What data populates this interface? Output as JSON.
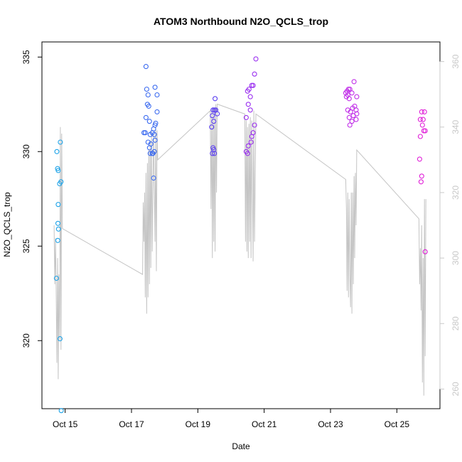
{
  "chart_data": {
    "type": "scatter",
    "title": "ATOM3 Northbound N2O_QCLS_trop",
    "xlabel": "Date",
    "ylabel": "N2O_QCLS_trop",
    "x_axis": {
      "type": "date",
      "range": [
        "2017-10-14 07:12",
        "2017-10-26 07:12"
      ],
      "ticks": [
        {
          "date": "2017-10-15",
          "label": "Oct 15"
        },
        {
          "date": "2017-10-17",
          "label": "Oct 17"
        },
        {
          "date": "2017-10-19",
          "label": "Oct 19"
        },
        {
          "date": "2017-10-21",
          "label": "Oct 21"
        },
        {
          "date": "2017-10-23",
          "label": "Oct 23"
        },
        {
          "date": "2017-10-25",
          "label": "Oct 25"
        }
      ]
    },
    "y_axis_left": {
      "ylim": [
        316.4,
        335.8
      ],
      "ticks": [
        320,
        325,
        330,
        335
      ],
      "tick_labels": [
        "320",
        "325",
        "330",
        "335"
      ]
    },
    "y_axis_right": {
      "ylim": [
        254,
        366
      ],
      "ticks": [
        260,
        280,
        300,
        320,
        340,
        360
      ],
      "tick_labels": [
        "260",
        "280",
        "300",
        "320",
        "340",
        "360"
      ],
      "color": "#c8c8c8"
    },
    "grid": false,
    "legend": "none",
    "series": [
      {
        "type": "scatter",
        "axis": "left",
        "color": "#1ea3e8",
        "points": [
          {
            "x": "2017-10-14 18:00",
            "y": 330.0
          },
          {
            "x": "2017-10-14 18:30",
            "y": 329.1
          },
          {
            "x": "2017-10-14 19:00",
            "y": 329.0
          },
          {
            "x": "2017-10-14 19:00",
            "y": 327.2
          },
          {
            "x": "2017-10-14 18:45",
            "y": 326.2
          },
          {
            "x": "2017-10-14 19:10",
            "y": 325.9
          },
          {
            "x": "2017-10-14 18:40",
            "y": 325.3
          },
          {
            "x": "2017-10-14 17:40",
            "y": 323.3
          },
          {
            "x": "2017-10-14 20:30",
            "y": 330.5
          },
          {
            "x": "2017-10-14 20:00",
            "y": 328.3
          },
          {
            "x": "2017-10-14 21:00",
            "y": 328.4
          },
          {
            "x": "2017-10-14 20:15",
            "y": 320.1
          },
          {
            "x": "2017-10-14 21:10",
            "y": 316.3
          }
        ]
      },
      {
        "type": "scatter",
        "axis": "left",
        "color": "#3c6bf0",
        "points": [
          {
            "x": "2017-10-17 10:30",
            "y": 334.5
          },
          {
            "x": "2017-10-17 11:00",
            "y": 333.3
          },
          {
            "x": "2017-10-17 12:00",
            "y": 333.0
          },
          {
            "x": "2017-10-17 17:00",
            "y": 333.4
          },
          {
            "x": "2017-10-17 18:30",
            "y": 333.0
          },
          {
            "x": "2017-10-17 11:30",
            "y": 332.5
          },
          {
            "x": "2017-10-17 12:30",
            "y": 332.4
          },
          {
            "x": "2017-10-17 18:30",
            "y": 332.1
          },
          {
            "x": "2017-10-17 10:30",
            "y": 331.8
          },
          {
            "x": "2017-10-17 13:00",
            "y": 331.6
          },
          {
            "x": "2017-10-17 17:30",
            "y": 331.5
          },
          {
            "x": "2017-10-17 17:00",
            "y": 331.4
          },
          {
            "x": "2017-10-17 16:00",
            "y": 331.2
          },
          {
            "x": "2017-10-17 09:00",
            "y": 331.0
          },
          {
            "x": "2017-10-17 10:00",
            "y": 331.0
          },
          {
            "x": "2017-10-17 13:30",
            "y": 330.9
          },
          {
            "x": "2017-10-17 15:00",
            "y": 331.0
          },
          {
            "x": "2017-10-17 16:30",
            "y": 330.9
          },
          {
            "x": "2017-10-17 17:00",
            "y": 330.6
          },
          {
            "x": "2017-10-17 12:00",
            "y": 330.5
          },
          {
            "x": "2017-10-17 13:00",
            "y": 330.2
          },
          {
            "x": "2017-10-17 14:00",
            "y": 330.4
          },
          {
            "x": "2017-10-17 13:30",
            "y": 329.9
          },
          {
            "x": "2017-10-17 15:00",
            "y": 329.9
          },
          {
            "x": "2017-10-17 15:30",
            "y": 329.9
          },
          {
            "x": "2017-10-17 16:30",
            "y": 330.0
          },
          {
            "x": "2017-10-17 16:00",
            "y": 328.6
          }
        ]
      },
      {
        "type": "scatter",
        "axis": "left",
        "color": "#5b3ef0",
        "points": [
          {
            "x": "2017-10-19 12:30",
            "y": 332.8
          },
          {
            "x": "2017-10-19 11:00",
            "y": 332.2
          },
          {
            "x": "2017-10-19 12:00",
            "y": 332.2
          },
          {
            "x": "2017-10-19 13:00",
            "y": 332.2
          },
          {
            "x": "2017-10-19 14:00",
            "y": 332.0
          },
          {
            "x": "2017-10-19 10:30",
            "y": 331.9
          },
          {
            "x": "2017-10-19 11:30",
            "y": 331.6
          },
          {
            "x": "2017-10-19 10:00",
            "y": 331.3
          },
          {
            "x": "2017-10-19 11:00",
            "y": 330.2
          },
          {
            "x": "2017-10-19 11:30",
            "y": 330.1
          },
          {
            "x": "2017-10-19 10:30",
            "y": 329.9
          },
          {
            "x": "2017-10-19 12:00",
            "y": 329.9
          }
        ]
      },
      {
        "type": "scatter",
        "axis": "left",
        "color": "#9a2ff0",
        "points": [
          {
            "x": "2017-10-20 18:00",
            "y": 334.9
          },
          {
            "x": "2017-10-20 17:00",
            "y": 334.1
          },
          {
            "x": "2017-10-20 15:00",
            "y": 333.5
          },
          {
            "x": "2017-10-20 16:00",
            "y": 333.5
          },
          {
            "x": "2017-10-20 12:00",
            "y": 333.2
          },
          {
            "x": "2017-10-20 13:00",
            "y": 333.3
          },
          {
            "x": "2017-10-20 14:00",
            "y": 332.9
          },
          {
            "x": "2017-10-20 12:30",
            "y": 332.5
          },
          {
            "x": "2017-10-20 14:00",
            "y": 332.2
          },
          {
            "x": "2017-10-20 11:00",
            "y": 331.8
          },
          {
            "x": "2017-10-20 17:00",
            "y": 331.4
          },
          {
            "x": "2017-10-20 16:00",
            "y": 331.0
          },
          {
            "x": "2017-10-20 15:00",
            "y": 330.8
          },
          {
            "x": "2017-10-20 14:30",
            "y": 330.5
          },
          {
            "x": "2017-10-20 12:30",
            "y": 330.3
          },
          {
            "x": "2017-10-20 11:00",
            "y": 330.0
          },
          {
            "x": "2017-10-20 12:00",
            "y": 329.9
          }
        ]
      },
      {
        "type": "scatter",
        "axis": "left",
        "color": "#c02ee8",
        "points": [
          {
            "x": "2017-10-23 17:00",
            "y": 333.7
          },
          {
            "x": "2017-10-23 12:00",
            "y": 333.2
          },
          {
            "x": "2017-10-23 13:00",
            "y": 333.3
          },
          {
            "x": "2017-10-23 14:00",
            "y": 333.3
          },
          {
            "x": "2017-10-23 11:00",
            "y": 333.1
          },
          {
            "x": "2017-10-23 12:30",
            "y": 333.0
          },
          {
            "x": "2017-10-23 15:30",
            "y": 333.1
          },
          {
            "x": "2017-10-23 11:30",
            "y": 332.9
          },
          {
            "x": "2017-10-23 13:30",
            "y": 332.8
          },
          {
            "x": "2017-10-23 19:00",
            "y": 332.9
          },
          {
            "x": "2017-10-23 17:30",
            "y": 332.4
          },
          {
            "x": "2017-10-23 16:00",
            "y": 332.3
          },
          {
            "x": "2017-10-23 18:30",
            "y": 332.2
          },
          {
            "x": "2017-10-23 12:30",
            "y": 332.2
          },
          {
            "x": "2017-10-23 14:30",
            "y": 332.1
          },
          {
            "x": "2017-10-23 16:30",
            "y": 331.9
          },
          {
            "x": "2017-10-23 19:00",
            "y": 332.0
          },
          {
            "x": "2017-10-23 13:30",
            "y": 331.8
          },
          {
            "x": "2017-10-23 18:30",
            "y": 331.7
          },
          {
            "x": "2017-10-23 15:30",
            "y": 331.6
          },
          {
            "x": "2017-10-23 14:00",
            "y": 331.4
          }
        ]
      },
      {
        "type": "scatter",
        "axis": "left",
        "color": "#e01ed8",
        "points": [
          {
            "x": "2017-10-25 18:00",
            "y": 332.1
          },
          {
            "x": "2017-10-25 20:00",
            "y": 332.1
          },
          {
            "x": "2017-10-25 17:00",
            "y": 331.7
          },
          {
            "x": "2017-10-25 19:00",
            "y": 331.7
          },
          {
            "x": "2017-10-25 18:30",
            "y": 331.4
          },
          {
            "x": "2017-10-25 19:30",
            "y": 331.1
          },
          {
            "x": "2017-10-25 20:30",
            "y": 331.1
          },
          {
            "x": "2017-10-25 17:00",
            "y": 330.8
          },
          {
            "x": "2017-10-25 16:30",
            "y": 329.6
          },
          {
            "x": "2017-10-25 18:00",
            "y": 328.7
          },
          {
            "x": "2017-10-25 17:30",
            "y": 328.4
          },
          {
            "x": "2017-10-25 20:30",
            "y": 324.7
          }
        ]
      },
      {
        "type": "line",
        "axis": "right",
        "color": "#c4c4c4",
        "points": [
          {
            "x": "2017-10-14 16:00",
            "y": 310
          },
          {
            "x": "2017-10-14 16:30",
            "y": 292
          },
          {
            "x": "2017-10-14 17:00",
            "y": 306
          },
          {
            "x": "2017-10-14 17:30",
            "y": 290
          },
          {
            "x": "2017-10-14 18:00",
            "y": 268
          },
          {
            "x": "2017-10-14 18:30",
            "y": 300
          },
          {
            "x": "2017-10-14 19:00",
            "y": 263
          },
          {
            "x": "2017-10-14 19:30",
            "y": 295
          },
          {
            "x": "2017-10-14 20:00",
            "y": 275
          },
          {
            "x": "2017-10-14 20:30",
            "y": 340
          },
          {
            "x": "2017-10-14 21:00",
            "y": 272
          },
          {
            "x": "2017-10-14 21:30",
            "y": 338
          },
          {
            "x": "2017-10-14 22:00",
            "y": 309
          },
          {
            "x": "2017-10-17 08:00",
            "y": 295
          },
          {
            "x": "2017-10-17 08:30",
            "y": 317
          },
          {
            "x": "2017-10-17 09:00",
            "y": 305
          },
          {
            "x": "2017-10-17 09:30",
            "y": 320
          },
          {
            "x": "2017-10-17 10:00",
            "y": 288
          },
          {
            "x": "2017-10-17 10:30",
            "y": 326
          },
          {
            "x": "2017-10-17 11:00",
            "y": 283
          },
          {
            "x": "2017-10-17 11:30",
            "y": 329
          },
          {
            "x": "2017-10-17 12:00",
            "y": 288
          },
          {
            "x": "2017-10-17 12:30",
            "y": 333
          },
          {
            "x": "2017-10-17 13:00",
            "y": 292
          },
          {
            "x": "2017-10-17 13:30",
            "y": 336
          },
          {
            "x": "2017-10-17 14:00",
            "y": 297
          },
          {
            "x": "2017-10-17 14:30",
            "y": 339
          },
          {
            "x": "2017-10-17 15:00",
            "y": 302
          },
          {
            "x": "2017-10-17 16:00",
            "y": 338
          },
          {
            "x": "2017-10-17 17:00",
            "y": 305
          },
          {
            "x": "2017-10-17 17:30",
            "y": 340
          },
          {
            "x": "2017-10-17 18:00",
            "y": 296
          },
          {
            "x": "2017-10-17 18:30",
            "y": 339
          },
          {
            "x": "2017-10-17 19:00",
            "y": 330
          },
          {
            "x": "2017-10-19 09:00",
            "y": 345
          },
          {
            "x": "2017-10-19 09:30",
            "y": 315
          },
          {
            "x": "2017-10-19 10:00",
            "y": 345
          },
          {
            "x": "2017-10-19 10:30",
            "y": 300
          },
          {
            "x": "2017-10-19 11:00",
            "y": 346
          },
          {
            "x": "2017-10-19 11:30",
            "y": 305
          },
          {
            "x": "2017-10-19 12:00",
            "y": 346
          },
          {
            "x": "2017-10-19 12:30",
            "y": 302
          },
          {
            "x": "2017-10-19 13:00",
            "y": 347
          },
          {
            "x": "2017-10-19 13:30",
            "y": 320
          },
          {
            "x": "2017-10-19 14:00",
            "y": 347
          },
          {
            "x": "2017-10-20 10:00",
            "y": 344
          },
          {
            "x": "2017-10-20 10:30",
            "y": 305
          },
          {
            "x": "2017-10-20 11:00",
            "y": 342
          },
          {
            "x": "2017-10-20 11:30",
            "y": 302
          },
          {
            "x": "2017-10-20 12:00",
            "y": 340
          },
          {
            "x": "2017-10-20 12:30",
            "y": 300
          },
          {
            "x": "2017-10-20 13:00",
            "y": 341
          },
          {
            "x": "2017-10-20 13:30",
            "y": 305
          },
          {
            "x": "2017-10-20 14:00",
            "y": 343
          },
          {
            "x": "2017-10-20 14:30",
            "y": 300
          },
          {
            "x": "2017-10-20 15:00",
            "y": 342
          },
          {
            "x": "2017-10-20 16:00",
            "y": 299
          },
          {
            "x": "2017-10-20 16:30",
            "y": 345
          },
          {
            "x": "2017-10-20 17:00",
            "y": 305
          },
          {
            "x": "2017-10-20 18:00",
            "y": 344
          },
          {
            "x": "2017-10-23 11:00",
            "y": 324
          },
          {
            "x": "2017-10-23 11:30",
            "y": 315
          },
          {
            "x": "2017-10-23 12:00",
            "y": 290
          },
          {
            "x": "2017-10-23 12:30",
            "y": 320
          },
          {
            "x": "2017-10-23 13:00",
            "y": 288
          },
          {
            "x": "2017-10-23 13:30",
            "y": 318
          },
          {
            "x": "2017-10-23 14:00",
            "y": 295
          },
          {
            "x": "2017-10-23 14:30",
            "y": 285
          },
          {
            "x": "2017-10-23 15:00",
            "y": 320
          },
          {
            "x": "2017-10-23 15:30",
            "y": 283
          },
          {
            "x": "2017-10-23 16:00",
            "y": 320
          },
          {
            "x": "2017-10-23 16:30",
            "y": 292
          },
          {
            "x": "2017-10-23 17:00",
            "y": 325
          },
          {
            "x": "2017-10-23 17:30",
            "y": 300
          },
          {
            "x": "2017-10-23 18:00",
            "y": 326
          },
          {
            "x": "2017-10-23 18:30",
            "y": 310
          },
          {
            "x": "2017-10-23 19:00",
            "y": 333
          },
          {
            "x": "2017-10-25 16:00",
            "y": 312
          },
          {
            "x": "2017-10-25 16:30",
            "y": 292
          },
          {
            "x": "2017-10-25 17:00",
            "y": 303
          },
          {
            "x": "2017-10-25 17:30",
            "y": 284
          },
          {
            "x": "2017-10-25 18:00",
            "y": 310
          },
          {
            "x": "2017-10-25 18:30",
            "y": 262
          },
          {
            "x": "2017-10-25 19:00",
            "y": 300
          },
          {
            "x": "2017-10-25 19:30",
            "y": 258
          },
          {
            "x": "2017-10-25 20:00",
            "y": 318
          },
          {
            "x": "2017-10-25 20:30",
            "y": 270
          },
          {
            "x": "2017-10-25 21:00",
            "y": 318
          }
        ]
      }
    ]
  }
}
